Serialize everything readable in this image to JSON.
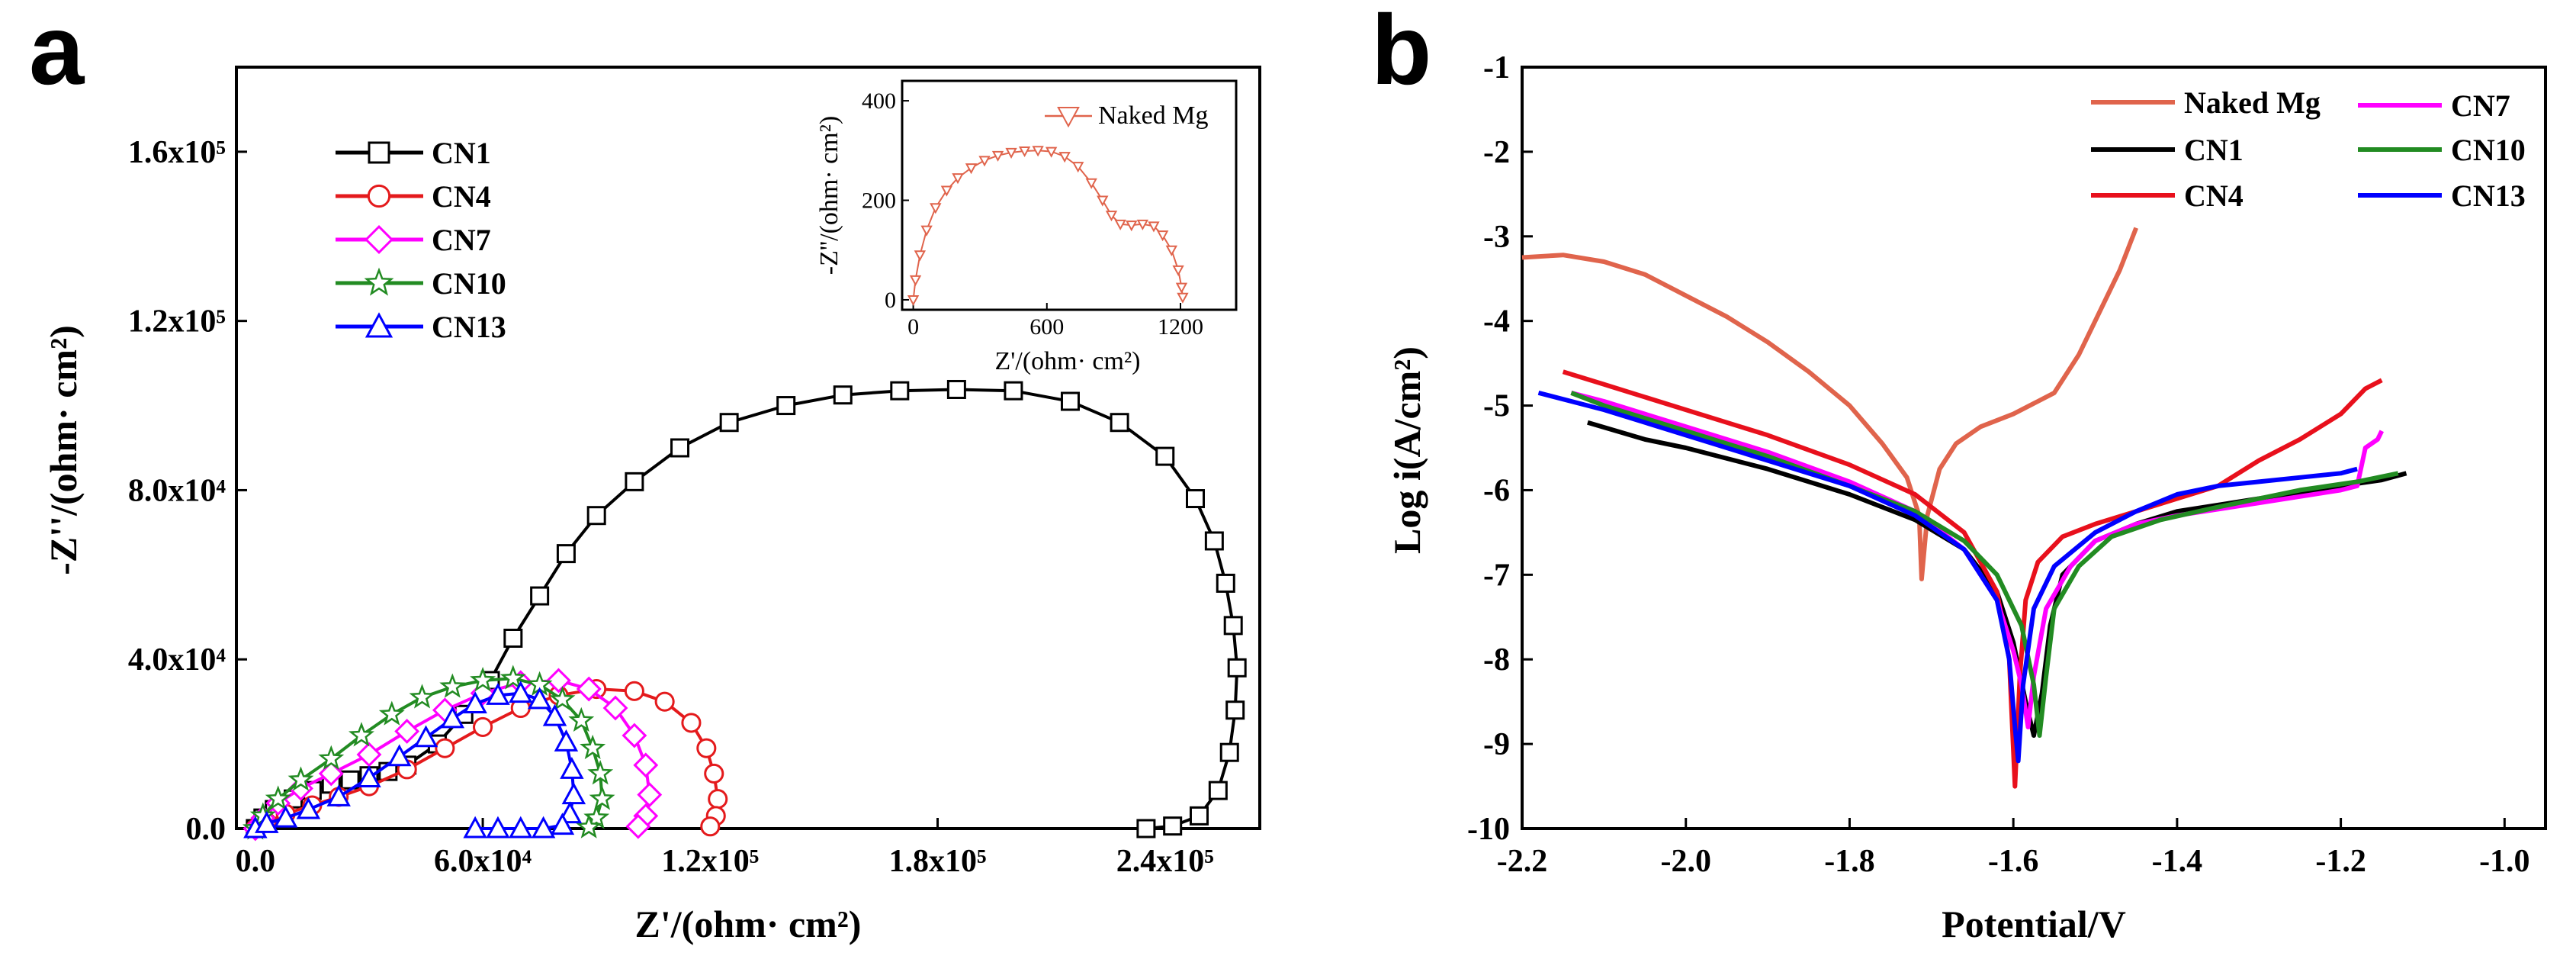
{
  "chart_data": [
    {
      "panel": "a",
      "type": "scatter",
      "title": "",
      "xlabel": "Z'/(ohm· cm²)",
      "ylabel": "-Z''/(ohm· cm²)",
      "xlim": [
        -5000,
        265000
      ],
      "ylim": [
        0,
        180000
      ],
      "xticks": [
        0,
        60000,
        120000,
        180000,
        240000
      ],
      "xtick_labels": [
        "0.0",
        "6.0x10⁴",
        "1.2x10⁵",
        "1.8x10⁵",
        "2.4x10⁵"
      ],
      "yticks": [
        0,
        40000,
        80000,
        120000,
        160000
      ],
      "ytick_labels": [
        "0.0",
        "4.0x10⁴",
        "8.0x10⁴",
        "1.2x10⁵",
        "1.6x10⁵"
      ],
      "legend": "top-left",
      "series": [
        {
          "name": "CN1",
          "color": "#000000",
          "marker": "square",
          "points": [
            [
              0,
              0
            ],
            [
              2000,
              2500
            ],
            [
              5000,
              4500
            ],
            [
              10000,
              7000
            ],
            [
              15000,
              9000
            ],
            [
              20000,
              10500
            ],
            [
              25000,
              11500
            ],
            [
              30000,
              12500
            ],
            [
              35000,
              13500
            ],
            [
              40000,
              15000
            ],
            [
              48000,
              20000
            ],
            [
              55000,
              27000
            ],
            [
              62000,
              35000
            ],
            [
              68000,
              45000
            ],
            [
              75000,
              55000
            ],
            [
              82000,
              65000
            ],
            [
              90000,
              74000
            ],
            [
              100000,
              82000
            ],
            [
              112000,
              90000
            ],
            [
              125000,
              96000
            ],
            [
              140000,
              100000
            ],
            [
              155000,
              102500
            ],
            [
              170000,
              103500
            ],
            [
              185000,
              103800
            ],
            [
              200000,
              103500
            ],
            [
              215000,
              101000
            ],
            [
              228000,
              96000
            ],
            [
              240000,
              88000
            ],
            [
              248000,
              78000
            ],
            [
              253000,
              68000
            ],
            [
              256000,
              58000
            ],
            [
              258000,
              48000
            ],
            [
              259000,
              38000
            ],
            [
              258500,
              28000
            ],
            [
              257000,
              18000
            ],
            [
              254000,
              9000
            ],
            [
              249000,
              3000
            ],
            [
              242000,
              600
            ],
            [
              235000,
              0
            ]
          ]
        },
        {
          "name": "CN4",
          "color": "#e41a1c",
          "marker": "circle",
          "points": [
            [
              0,
              0
            ],
            [
              3000,
              1500
            ],
            [
              8000,
              3500
            ],
            [
              15000,
              5500
            ],
            [
              22000,
              7500
            ],
            [
              30000,
              10000
            ],
            [
              40000,
              14000
            ],
            [
              50000,
              19000
            ],
            [
              60000,
              24000
            ],
            [
              70000,
              28500
            ],
            [
              80000,
              31500
            ],
            [
              90000,
              33000
            ],
            [
              100000,
              32500
            ],
            [
              108000,
              30000
            ],
            [
              115000,
              25000
            ],
            [
              119000,
              19000
            ],
            [
              121000,
              13000
            ],
            [
              122000,
              7000
            ],
            [
              121500,
              3000
            ],
            [
              120000,
              500
            ]
          ]
        },
        {
          "name": "CN7",
          "color": "#ff00ff",
          "marker": "diamond",
          "points": [
            [
              0,
              0
            ],
            [
              2000,
              2500
            ],
            [
              6000,
              6000
            ],
            [
              12000,
              9500
            ],
            [
              20000,
              13000
            ],
            [
              30000,
              17500
            ],
            [
              40000,
              23000
            ],
            [
              50000,
              28000
            ],
            [
              60000,
              32000
            ],
            [
              70000,
              34500
            ],
            [
              80000,
              35000
            ],
            [
              88000,
              33000
            ],
            [
              95000,
              28500
            ],
            [
              100000,
              22000
            ],
            [
              103000,
              15000
            ],
            [
              104000,
              8000
            ],
            [
              103000,
              3000
            ],
            [
              101000,
              500
            ]
          ]
        },
        {
          "name": "CN10",
          "color": "#228b22",
          "marker": "star",
          "points": [
            [
              0,
              0
            ],
            [
              2000,
              3000
            ],
            [
              6000,
              7000
            ],
            [
              12000,
              11500
            ],
            [
              20000,
              16500
            ],
            [
              28000,
              22000
            ],
            [
              36000,
              27000
            ],
            [
              44000,
              31000
            ],
            [
              52000,
              33500
            ],
            [
              60000,
              35000
            ],
            [
              68000,
              35500
            ],
            [
              75000,
              34000
            ],
            [
              81000,
              30500
            ],
            [
              86000,
              25500
            ],
            [
              89000,
              19000
            ],
            [
              91000,
              13000
            ],
            [
              91500,
              7000
            ],
            [
              90000,
              2500
            ],
            [
              88000,
              300
            ]
          ]
        },
        {
          "name": "CN13",
          "color": "#0000ff",
          "marker": "triangle",
          "points": [
            [
              0,
              0
            ],
            [
              3000,
              1200
            ],
            [
              8000,
              2500
            ],
            [
              14000,
              4500
            ],
            [
              22000,
              7500
            ],
            [
              30000,
              12000
            ],
            [
              38000,
              17000
            ],
            [
              45000,
              21500
            ],
            [
              52000,
              26000
            ],
            [
              58000,
              29500
            ],
            [
              64000,
              31500
            ],
            [
              70000,
              32000
            ],
            [
              75000,
              30500
            ],
            [
              79000,
              26500
            ],
            [
              82000,
              20500
            ],
            [
              83500,
              14000
            ],
            [
              84000,
              8000
            ],
            [
              83000,
              3500
            ],
            [
              81000,
              800
            ],
            [
              76000,
              0
            ],
            [
              70000,
              0
            ],
            [
              64000,
              0
            ],
            [
              58000,
              0
            ]
          ]
        }
      ],
      "inset": {
        "xlabel": "Z'/(ohm· cm²)",
        "ylabel": "-Z''/(ohm· cm²)",
        "xlim": [
          -50,
          1450
        ],
        "ylim": [
          -20,
          440
        ],
        "xtick_labels": [
          "0",
          "600",
          "1200"
        ],
        "xticks": [
          0,
          600,
          1200
        ],
        "ytick_labels": [
          "0",
          "200",
          "400"
        ],
        "yticks": [
          0,
          200,
          400
        ],
        "series": [
          {
            "name": "Naked Mg",
            "color": "#e0644c",
            "marker": "triangle-down",
            "points": [
              [
                0,
                0
              ],
              [
                10,
                40
              ],
              [
                30,
                90
              ],
              [
                60,
                140
              ],
              [
                100,
                185
              ],
              [
                150,
                220
              ],
              [
                200,
                245
              ],
              [
                260,
                265
              ],
              [
                320,
                280
              ],
              [
                380,
                290
              ],
              [
                440,
                296
              ],
              [
                500,
                299
              ],
              [
                560,
                300
              ],
              [
                620,
                298
              ],
              [
                680,
                288
              ],
              [
                740,
                268
              ],
              [
                800,
                235
              ],
              [
                850,
                200
              ],
              [
                890,
                170
              ],
              [
                930,
                152
              ],
              [
                980,
                150
              ],
              [
                1030,
                152
              ],
              [
                1080,
                148
              ],
              [
                1120,
                130
              ],
              [
                1160,
                100
              ],
              [
                1190,
                60
              ],
              [
                1205,
                25
              ],
              [
                1210,
                5
              ]
            ]
          }
        ]
      }
    },
    {
      "panel": "b",
      "type": "line",
      "title": "",
      "xlabel": "Potential/V",
      "ylabel": "Log i(A/cm²)",
      "xlim": [
        -2.2,
        -0.95
      ],
      "ylim": [
        -10,
        -1
      ],
      "xticks": [
        -2.2,
        -2.0,
        -1.8,
        -1.6,
        -1.4,
        -1.2,
        -1.0
      ],
      "xtick_labels": [
        "-2.2",
        "-2.0",
        "-1.8",
        "-1.6",
        "-1.4",
        "-1.2",
        "-1.0"
      ],
      "yticks": [
        -10,
        -9,
        -8,
        -7,
        -6,
        -5,
        -4,
        -3,
        -2,
        -1
      ],
      "ytick_labels": [
        "-10",
        "-9",
        "-8",
        "-7",
        "-6",
        "-5",
        "-4",
        "-3",
        "-2",
        "-1"
      ],
      "legend": "top-right",
      "series": [
        {
          "name": "Naked Mg",
          "color": "#e0644c",
          "x": [
            -2.2,
            -2.15,
            -2.1,
            -2.05,
            -2.0,
            -1.95,
            -1.9,
            -1.85,
            -1.8,
            -1.76,
            -1.73,
            -1.715,
            -1.712,
            -1.705,
            -1.69,
            -1.67,
            -1.64,
            -1.6,
            -1.57,
            -1.55,
            -1.52,
            -1.5,
            -1.47,
            -1.45
          ],
          "y": [
            -3.25,
            -3.22,
            -3.3,
            -3.45,
            -3.7,
            -3.95,
            -4.25,
            -4.6,
            -5.0,
            -5.45,
            -5.85,
            -6.3,
            -7.05,
            -6.3,
            -5.75,
            -5.45,
            -5.25,
            -5.1,
            -4.95,
            -4.85,
            -4.4,
            -4.0,
            -3.4,
            -2.9
          ]
        },
        {
          "name": "CN1",
          "color": "#000000",
          "x": [
            -2.12,
            -2.05,
            -2.0,
            -1.9,
            -1.8,
            -1.72,
            -1.66,
            -1.62,
            -1.6,
            -1.585,
            -1.575,
            -1.565,
            -1.555,
            -1.54,
            -1.5,
            -1.45,
            -1.4,
            -1.3,
            -1.2,
            -1.15,
            -1.12
          ],
          "y": [
            -5.2,
            -5.4,
            -5.5,
            -5.75,
            -6.05,
            -6.35,
            -6.7,
            -7.2,
            -7.8,
            -8.5,
            -8.9,
            -8.4,
            -7.6,
            -7.0,
            -6.6,
            -6.4,
            -6.25,
            -6.1,
            -5.95,
            -5.88,
            -5.8
          ]
        },
        {
          "name": "CN4",
          "color": "#e8101c",
          "x": [
            -2.15,
            -2.1,
            -2.0,
            -1.9,
            -1.8,
            -1.72,
            -1.66,
            -1.62,
            -1.605,
            -1.598,
            -1.592,
            -1.585,
            -1.57,
            -1.54,
            -1.5,
            -1.45,
            -1.4,
            -1.35,
            -1.3,
            -1.25,
            -1.2,
            -1.17,
            -1.15
          ],
          "y": [
            -4.6,
            -4.75,
            -5.05,
            -5.35,
            -5.7,
            -6.05,
            -6.5,
            -7.2,
            -8.0,
            -9.5,
            -8.2,
            -7.3,
            -6.85,
            -6.55,
            -6.4,
            -6.25,
            -6.1,
            -5.95,
            -5.65,
            -5.4,
            -5.1,
            -4.8,
            -4.7
          ]
        },
        {
          "name": "CN7",
          "color": "#ff00ff",
          "x": [
            -2.14,
            -2.1,
            -2.0,
            -1.9,
            -1.8,
            -1.72,
            -1.66,
            -1.62,
            -1.6,
            -1.59,
            -1.582,
            -1.575,
            -1.56,
            -1.53,
            -1.5,
            -1.45,
            -1.4,
            -1.3,
            -1.2,
            -1.18,
            -1.17,
            -1.155,
            -1.15
          ],
          "y": [
            -4.85,
            -4.95,
            -5.25,
            -5.55,
            -5.9,
            -6.25,
            -6.7,
            -7.3,
            -7.9,
            -8.3,
            -8.8,
            -8.2,
            -7.4,
            -6.9,
            -6.6,
            -6.4,
            -6.3,
            -6.15,
            -6.0,
            -5.95,
            -5.5,
            -5.4,
            -5.3
          ]
        },
        {
          "name": "CN10",
          "color": "#228b22",
          "x": [
            -2.14,
            -2.1,
            -2.0,
            -1.9,
            -1.8,
            -1.72,
            -1.66,
            -1.62,
            -1.59,
            -1.575,
            -1.568,
            -1.56,
            -1.55,
            -1.52,
            -1.48,
            -1.42,
            -1.35,
            -1.25,
            -1.18,
            -1.13
          ],
          "y": [
            -4.85,
            -5.0,
            -5.3,
            -5.6,
            -5.95,
            -6.25,
            -6.6,
            -7.0,
            -7.6,
            -8.3,
            -8.9,
            -8.2,
            -7.4,
            -6.9,
            -6.55,
            -6.35,
            -6.2,
            -6.0,
            -5.9,
            -5.8
          ]
        },
        {
          "name": "CN13",
          "color": "#0000ff",
          "x": [
            -2.18,
            -2.1,
            -2.0,
            -1.9,
            -1.8,
            -1.72,
            -1.66,
            -1.62,
            -1.605,
            -1.598,
            -1.594,
            -1.588,
            -1.575,
            -1.55,
            -1.5,
            -1.45,
            -1.4,
            -1.35,
            -1.3,
            -1.25,
            -1.2,
            -1.18
          ],
          "y": [
            -4.85,
            -5.05,
            -5.35,
            -5.65,
            -5.95,
            -6.3,
            -6.7,
            -7.3,
            -8.0,
            -8.8,
            -9.2,
            -8.3,
            -7.4,
            -6.9,
            -6.5,
            -6.25,
            -6.05,
            -5.95,
            -5.9,
            -5.85,
            -5.8,
            -5.75
          ]
        }
      ]
    }
  ]
}
